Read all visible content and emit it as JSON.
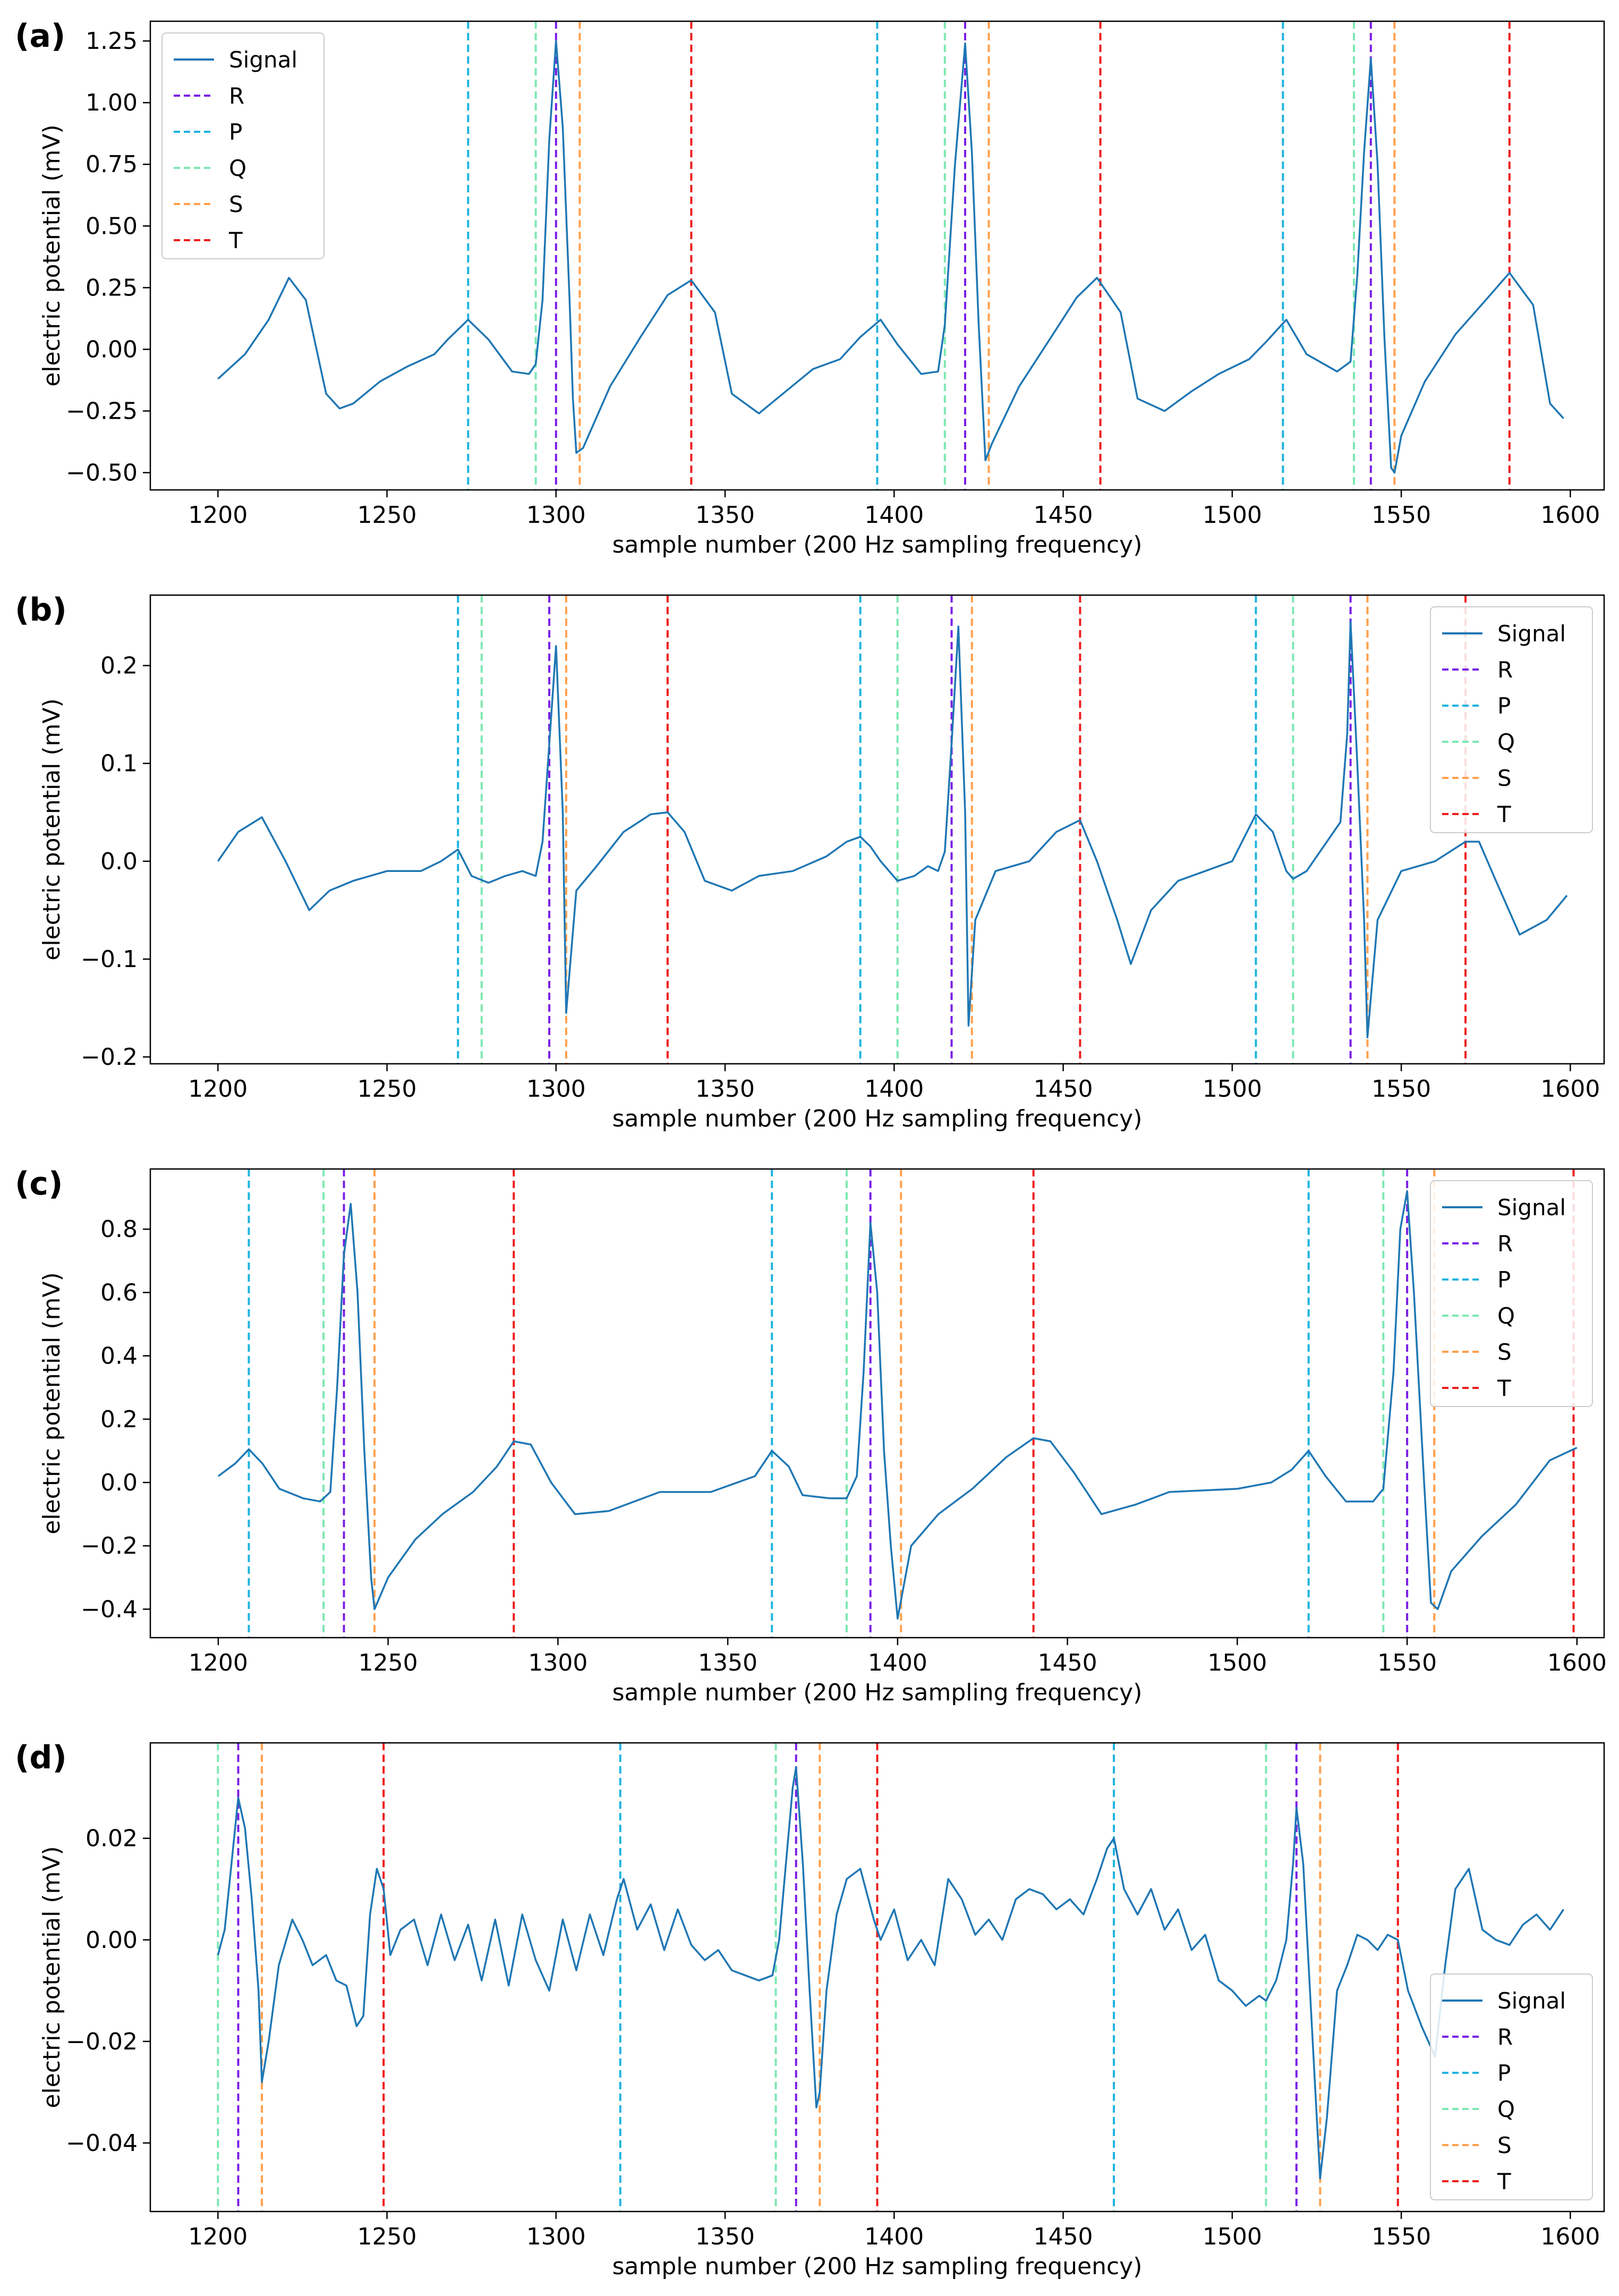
{
  "chart_data": [
    {
      "type": "line",
      "panel_label": "(a)",
      "xlabel": "sample number (200 Hz sampling frequency)",
      "ylabel": "electric potential (mV)",
      "xlim": [
        1180,
        1610
      ],
      "ylim": [
        -0.57,
        1.33
      ],
      "xticks": [
        1200,
        1250,
        1300,
        1350,
        1400,
        1450,
        1500,
        1550,
        1600
      ],
      "xtick_labels": [
        "1200",
        "1250",
        "1300",
        "1350",
        "1400",
        "1450",
        "1500",
        "1550",
        "1600"
      ],
      "yticks": [
        -0.5,
        -0.25,
        0.0,
        0.25,
        0.5,
        0.75,
        1.0,
        1.25
      ],
      "ytick_labels": [
        "−0.50",
        "−0.25",
        "0.00",
        "0.25",
        "0.50",
        "0.75",
        "1.00",
        "1.25"
      ],
      "legend_position": "top-left",
      "series": [
        {
          "name": "Signal",
          "x": [
            1200,
            1208,
            1215,
            1221,
            1226,
            1232,
            1236,
            1240,
            1248,
            1256,
            1264,
            1268,
            1274,
            1280,
            1287,
            1292,
            1294,
            1296,
            1298,
            1300,
            1302,
            1304,
            1305,
            1306,
            1308,
            1316,
            1325,
            1333,
            1340,
            1347,
            1352,
            1360,
            1368,
            1376,
            1384,
            1390,
            1396,
            1401,
            1408,
            1413,
            1415,
            1418,
            1421,
            1423,
            1425,
            1427,
            1429,
            1437,
            1446,
            1454,
            1460,
            1467,
            1472,
            1480,
            1488,
            1496,
            1505,
            1510,
            1516,
            1522,
            1531,
            1535,
            1537,
            1539,
            1541,
            1543,
            1545,
            1547,
            1548,
            1550,
            1557,
            1566,
            1575,
            1582,
            1589,
            1594,
            1598
          ],
          "y": [
            -0.12,
            -0.02,
            0.12,
            0.29,
            0.2,
            -0.18,
            -0.24,
            -0.22,
            -0.13,
            -0.07,
            -0.02,
            0.04,
            0.12,
            0.04,
            -0.09,
            -0.1,
            -0.06,
            0.2,
            0.85,
            1.25,
            0.9,
            0.2,
            -0.2,
            -0.42,
            -0.4,
            -0.15,
            0.05,
            0.22,
            0.28,
            0.15,
            -0.18,
            -0.26,
            -0.17,
            -0.08,
            -0.04,
            0.05,
            0.12,
            0.02,
            -0.1,
            -0.09,
            0.1,
            0.75,
            1.24,
            0.8,
            0.1,
            -0.45,
            -0.38,
            -0.15,
            0.04,
            0.21,
            0.29,
            0.15,
            -0.2,
            -0.25,
            -0.17,
            -0.1,
            -0.04,
            0.03,
            0.12,
            -0.02,
            -0.09,
            -0.05,
            0.3,
            0.8,
            1.18,
            0.75,
            0.05,
            -0.48,
            -0.5,
            -0.35,
            -0.13,
            0.06,
            0.2,
            0.31,
            0.18,
            -0.22,
            -0.28
          ]
        },
        {
          "name": "R",
          "color": "#7a1ee6",
          "x": [
            1300,
            1421,
            1541
          ]
        },
        {
          "name": "P",
          "color": "#1fb4df",
          "x": [
            1274,
            1395,
            1515
          ]
        },
        {
          "name": "Q",
          "color": "#7de8b2",
          "x": [
            1294,
            1415,
            1536
          ]
        },
        {
          "name": "S",
          "color": "#ffa04d",
          "x": [
            1307,
            1428,
            1548
          ]
        },
        {
          "name": "T",
          "color": "#ee1c1c",
          "x": [
            1340,
            1461,
            1582
          ]
        }
      ]
    },
    {
      "type": "line",
      "panel_label": "(b)",
      "xlabel": "sample number (200 Hz sampling frequency)",
      "ylabel": "electric potential (mV)",
      "xlim": [
        1180,
        1610
      ],
      "ylim": [
        -0.207,
        0.272
      ],
      "xticks": [
        1200,
        1250,
        1300,
        1350,
        1400,
        1450,
        1500,
        1550,
        1600
      ],
      "xtick_labels": [
        "1200",
        "1250",
        "1300",
        "1350",
        "1400",
        "1450",
        "1500",
        "1550",
        "1600"
      ],
      "yticks": [
        -0.2,
        -0.1,
        0.0,
        0.1,
        0.2
      ],
      "ytick_labels": [
        "−0.2",
        "−0.1",
        "0.0",
        "0.1",
        "0.2"
      ],
      "legend_position": "top-right",
      "series": [
        {
          "name": "Signal",
          "x": [
            1200,
            1206,
            1213,
            1220,
            1227,
            1233,
            1240,
            1250,
            1260,
            1266,
            1271,
            1275,
            1280,
            1285,
            1290,
            1294,
            1296,
            1298,
            1300,
            1302,
            1303,
            1306,
            1312,
            1320,
            1328,
            1333,
            1338,
            1344,
            1352,
            1360,
            1370,
            1380,
            1386,
            1390,
            1393,
            1396,
            1401,
            1406,
            1410,
            1413,
            1415,
            1417,
            1419,
            1421,
            1422,
            1424,
            1430,
            1440,
            1448,
            1455,
            1460,
            1466,
            1470,
            1476,
            1484,
            1492,
            1500,
            1507,
            1512,
            1516,
            1518,
            1522,
            1528,
            1532,
            1534,
            1535,
            1537,
            1539,
            1540,
            1543,
            1550,
            1560,
            1569,
            1573,
            1578,
            1585,
            1593,
            1599
          ],
          "y": [
            0.0,
            0.03,
            0.045,
            0.0,
            -0.05,
            -0.03,
            -0.02,
            -0.01,
            -0.01,
            0.0,
            0.012,
            -0.015,
            -0.022,
            -0.015,
            -0.01,
            -0.015,
            0.02,
            0.12,
            0.22,
            0.05,
            -0.155,
            -0.03,
            -0.005,
            0.03,
            0.048,
            0.05,
            0.03,
            -0.02,
            -0.03,
            -0.015,
            -0.01,
            0.005,
            0.02,
            0.025,
            0.015,
            0.0,
            -0.02,
            -0.015,
            -0.005,
            -0.01,
            0.01,
            0.12,
            0.24,
            0.05,
            -0.168,
            -0.06,
            -0.01,
            0.0,
            0.03,
            0.042,
            0.0,
            -0.06,
            -0.105,
            -0.05,
            -0.02,
            -0.01,
            0.0,
            0.048,
            0.03,
            -0.01,
            -0.018,
            -0.01,
            0.02,
            0.04,
            0.13,
            0.245,
            0.1,
            -0.06,
            -0.18,
            -0.06,
            -0.01,
            0.0,
            0.02,
            0.02,
            -0.02,
            -0.075,
            -0.06,
            -0.035
          ]
        },
        {
          "name": "R",
          "color": "#7a1ee6",
          "x": [
            1298,
            1417,
            1535
          ]
        },
        {
          "name": "P",
          "color": "#1fb4df",
          "x": [
            1271,
            1390,
            1507
          ]
        },
        {
          "name": "Q",
          "color": "#7de8b2",
          "x": [
            1278,
            1401,
            1518
          ]
        },
        {
          "name": "S",
          "color": "#ffa04d",
          "x": [
            1303,
            1423,
            1540
          ]
        },
        {
          "name": "T",
          "color": "#ee1c1c",
          "x": [
            1333,
            1455,
            1569
          ]
        }
      ]
    },
    {
      "type": "line",
      "panel_label": "(c)",
      "xlabel": "sample number (200 Hz sampling frequency)",
      "ylabel": "electric potential (mV)",
      "xlim": [
        1180,
        1608
      ],
      "ylim": [
        -0.49,
        0.99
      ],
      "xticks": [
        1200,
        1250,
        1300,
        1350,
        1400,
        1450,
        1500,
        1550,
        1600
      ],
      "xtick_labels": [
        "1200",
        "1250",
        "1300",
        "1350",
        "1400",
        "1450",
        "1500",
        "1550",
        "1600"
      ],
      "yticks": [
        -0.4,
        -0.2,
        0.0,
        0.2,
        0.4,
        0.6,
        0.8
      ],
      "ytick_labels": [
        "−0.4",
        "−0.2",
        "0.0",
        "0.2",
        "0.4",
        "0.6",
        "0.8"
      ],
      "legend_position": "top-right",
      "series": [
        {
          "name": "Signal",
          "x": [
            1200,
            1205,
            1209,
            1213,
            1218,
            1225,
            1230,
            1233,
            1235,
            1237,
            1239,
            1241,
            1243,
            1245,
            1246,
            1250,
            1258,
            1266,
            1275,
            1282,
            1287,
            1292,
            1298,
            1305,
            1315,
            1330,
            1345,
            1358,
            1363,
            1368,
            1372,
            1380,
            1385,
            1388,
            1390,
            1392,
            1394,
            1396,
            1398,
            1400,
            1404,
            1412,
            1422,
            1432,
            1440,
            1445,
            1452,
            1460,
            1470,
            1480,
            1500,
            1510,
            1516,
            1521,
            1526,
            1532,
            1540,
            1543,
            1546,
            1548,
            1550,
            1552,
            1555,
            1557,
            1559,
            1563,
            1572,
            1582,
            1592,
            1600
          ],
          "y": [
            0.02,
            0.06,
            0.105,
            0.06,
            -0.02,
            -0.05,
            -0.06,
            -0.03,
            0.3,
            0.72,
            0.88,
            0.6,
            0.1,
            -0.3,
            -0.4,
            -0.3,
            -0.18,
            -0.1,
            -0.03,
            0.05,
            0.13,
            0.12,
            0.0,
            -0.1,
            -0.09,
            -0.03,
            -0.03,
            0.02,
            0.1,
            0.05,
            -0.04,
            -0.05,
            -0.05,
            0.02,
            0.35,
            0.82,
            0.6,
            0.1,
            -0.2,
            -0.43,
            -0.2,
            -0.1,
            -0.02,
            0.08,
            0.14,
            0.13,
            0.03,
            -0.1,
            -0.07,
            -0.03,
            -0.02,
            0.0,
            0.04,
            0.1,
            0.02,
            -0.06,
            -0.06,
            -0.02,
            0.35,
            0.8,
            0.92,
            0.6,
            0.0,
            -0.38,
            -0.4,
            -0.28,
            -0.17,
            -0.07,
            0.07,
            0.11
          ]
        },
        {
          "name": "R",
          "color": "#7a1ee6",
          "x": [
            1237,
            1392,
            1550
          ]
        },
        {
          "name": "P",
          "color": "#1fb4df",
          "x": [
            1209,
            1363,
            1521
          ]
        },
        {
          "name": "Q",
          "color": "#7de8b2",
          "x": [
            1231,
            1385,
            1543
          ]
        },
        {
          "name": "S",
          "color": "#ffa04d",
          "x": [
            1246,
            1401,
            1558
          ]
        },
        {
          "name": "T",
          "color": "#ee1c1c",
          "x": [
            1287,
            1440,
            1599
          ]
        }
      ]
    },
    {
      "type": "line",
      "panel_label": "(d)",
      "xlabel": "sample number (200 Hz sampling frequency)",
      "ylabel": "electric potential (mV)",
      "xlim": [
        1180,
        1610
      ],
      "ylim": [
        -0.0535,
        0.0388
      ],
      "xticks": [
        1200,
        1250,
        1300,
        1350,
        1400,
        1450,
        1500,
        1550,
        1600
      ],
      "xtick_labels": [
        "1200",
        "1250",
        "1300",
        "1350",
        "1400",
        "1450",
        "1500",
        "1550",
        "1600"
      ],
      "yticks": [
        -0.04,
        -0.02,
        0.0,
        0.02
      ],
      "ytick_labels": [
        "−0.04",
        "−0.02",
        "0.00",
        "0.02"
      ],
      "legend_position": "bottom-right",
      "series": [
        {
          "name": "Signal",
          "x": [
            1200,
            1202,
            1204,
            1206,
            1208,
            1210,
            1212,
            1213,
            1215,
            1218,
            1222,
            1225,
            1228,
            1232,
            1235,
            1238,
            1241,
            1243,
            1245,
            1247,
            1249,
            1251,
            1254,
            1258,
            1262,
            1266,
            1270,
            1274,
            1278,
            1282,
            1286,
            1290,
            1294,
            1298,
            1302,
            1306,
            1310,
            1314,
            1318,
            1320,
            1324,
            1328,
            1332,
            1336,
            1340,
            1344,
            1348,
            1352,
            1356,
            1360,
            1364,
            1366,
            1368,
            1370,
            1371,
            1373,
            1375,
            1377,
            1378,
            1380,
            1383,
            1386,
            1390,
            1394,
            1396,
            1400,
            1404,
            1408,
            1412,
            1416,
            1420,
            1424,
            1428,
            1432,
            1436,
            1440,
            1444,
            1448,
            1452,
            1456,
            1460,
            1463,
            1465,
            1468,
            1472,
            1476,
            1480,
            1484,
            1488,
            1492,
            1496,
            1500,
            1504,
            1508,
            1510,
            1513,
            1516,
            1518,
            1519,
            1521,
            1523,
            1525,
            1526,
            1528,
            1531,
            1534,
            1537,
            1540,
            1543,
            1546,
            1549,
            1552,
            1556,
            1560,
            1563,
            1566,
            1570,
            1574,
            1578,
            1582,
            1586,
            1590,
            1594,
            1598
          ],
          "y": [
            -0.003,
            0.002,
            0.015,
            0.028,
            0.022,
            0.008,
            -0.01,
            -0.028,
            -0.02,
            -0.005,
            0.004,
            0.0,
            -0.005,
            -0.003,
            -0.008,
            -0.009,
            -0.017,
            -0.015,
            0.005,
            0.014,
            0.01,
            -0.003,
            0.002,
            0.004,
            -0.005,
            0.005,
            -0.004,
            0.003,
            -0.008,
            0.004,
            -0.009,
            0.005,
            -0.004,
            -0.01,
            0.004,
            -0.006,
            0.005,
            -0.003,
            0.008,
            0.012,
            0.002,
            0.007,
            -0.002,
            0.006,
            -0.001,
            -0.004,
            -0.002,
            -0.006,
            -0.007,
            -0.008,
            -0.007,
            0.0,
            0.015,
            0.03,
            0.034,
            0.015,
            -0.01,
            -0.033,
            -0.03,
            -0.01,
            0.005,
            0.012,
            0.014,
            0.004,
            0.0,
            0.006,
            -0.004,
            0.0,
            -0.005,
            0.012,
            0.008,
            0.001,
            0.004,
            0.0,
            0.008,
            0.01,
            0.009,
            0.006,
            0.008,
            0.005,
            0.012,
            0.018,
            0.02,
            0.01,
            0.005,
            0.01,
            0.002,
            0.006,
            -0.002,
            0.001,
            -0.008,
            -0.01,
            -0.013,
            -0.011,
            -0.012,
            -0.008,
            0.0,
            0.015,
            0.026,
            0.015,
            -0.01,
            -0.035,
            -0.047,
            -0.035,
            -0.01,
            -0.005,
            0.001,
            0.0,
            -0.002,
            0.001,
            0.0,
            -0.01,
            -0.017,
            -0.023,
            -0.005,
            0.01,
            0.014,
            0.002,
            0.0,
            -0.001,
            0.003,
            0.005,
            0.002,
            0.006
          ]
        },
        {
          "name": "R",
          "color": "#7a1ee6",
          "x": [
            1206,
            1371,
            1519
          ]
        },
        {
          "name": "P",
          "color": "#1fb4df",
          "x": [
            1319,
            1465
          ]
        },
        {
          "name": "Q",
          "color": "#7de8b2",
          "x": [
            1200,
            1365,
            1510
          ]
        },
        {
          "name": "S",
          "color": "#ffa04d",
          "x": [
            1213,
            1378,
            1526
          ]
        },
        {
          "name": "T",
          "color": "#ee1c1c",
          "x": [
            1249,
            1395,
            1549
          ]
        }
      ]
    }
  ]
}
